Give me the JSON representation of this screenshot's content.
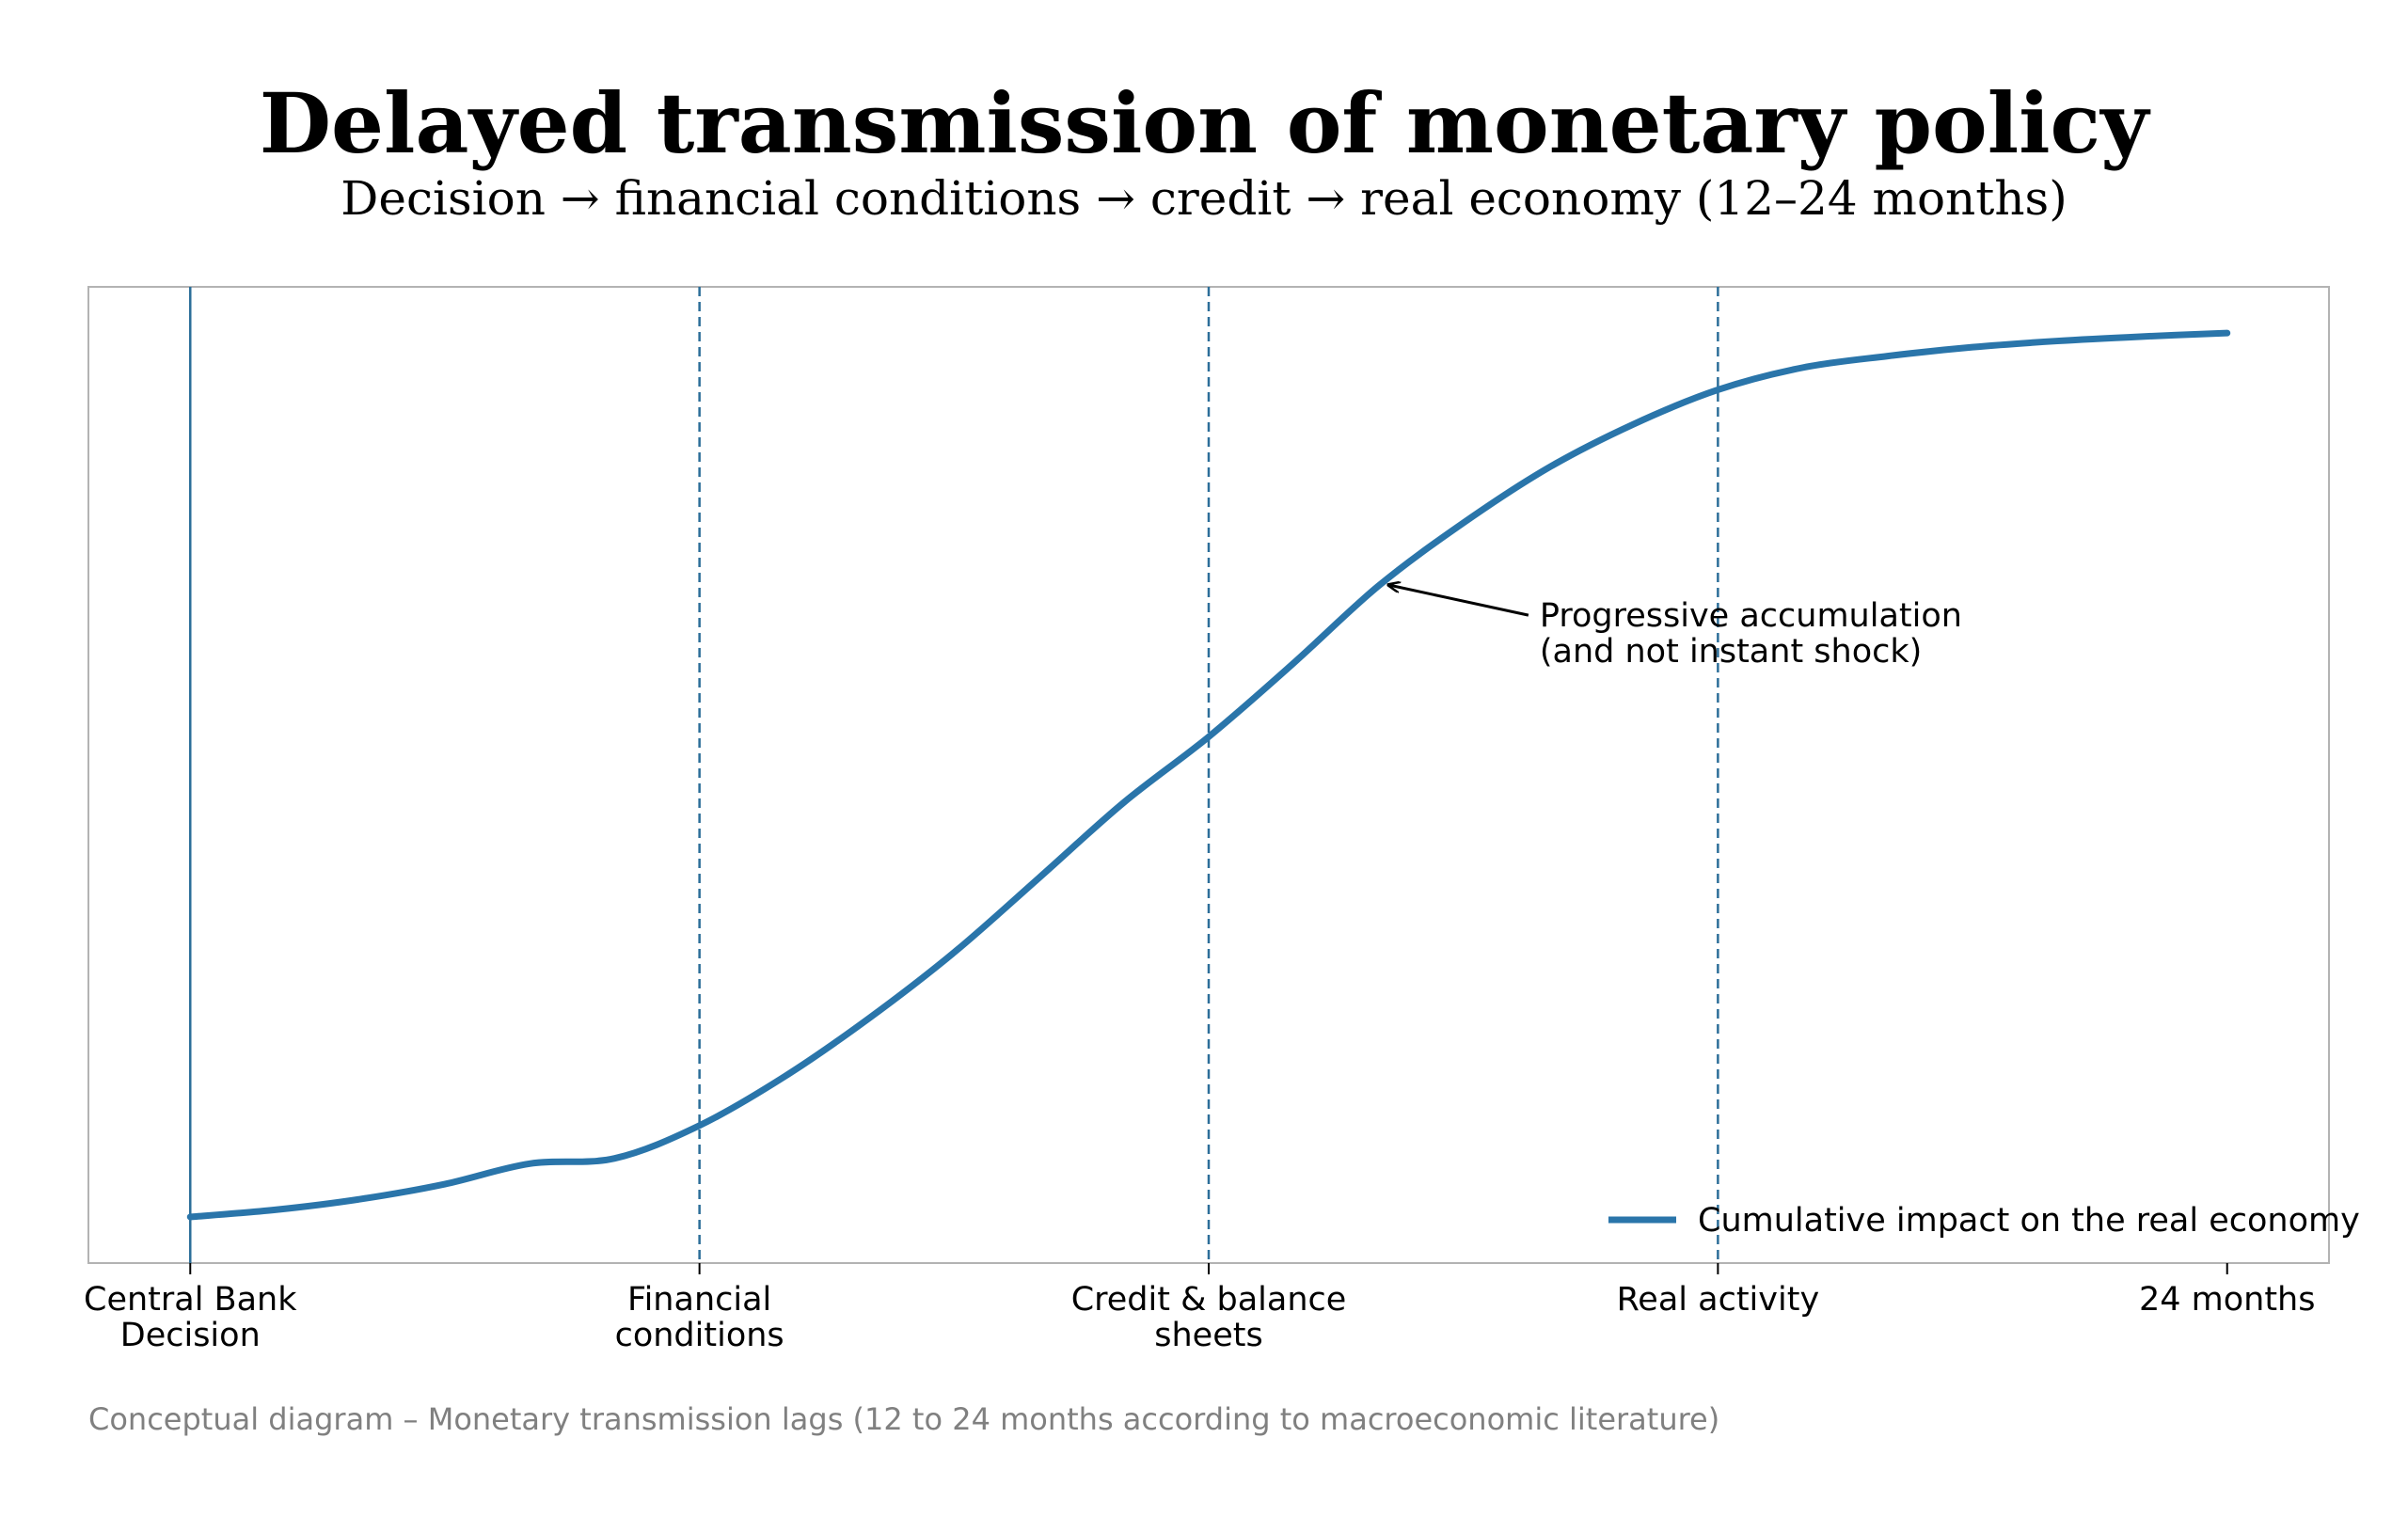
{
  "chart_data": {
    "type": "line",
    "title": "Delayed transmission of monetary policy",
    "subtitle": "Decision → financial conditions → credit → real economy (12–24 months)",
    "xlabel": "",
    "ylabel": "",
    "x_ticks": [
      {
        "x": 0,
        "lines": [
          "Central Bank",
          "Decision"
        ]
      },
      {
        "x": 6,
        "lines": [
          "Financial",
          "conditions"
        ]
      },
      {
        "x": 12,
        "lines": [
          "Credit & balance",
          "sheets"
        ]
      },
      {
        "x": 18,
        "lines": [
          "Real activity"
        ]
      },
      {
        "x": 24,
        "lines": [
          "24 months"
        ]
      }
    ],
    "xlim": [
      -1.2,
      25.2
    ],
    "ylim": [
      -0.05,
      1.05
    ],
    "yticks_visible": false,
    "grid": false,
    "vertical_markers": [
      {
        "x": 0,
        "style": "solid",
        "color": "#2c6e99"
      },
      {
        "x": 6,
        "style": "dashed",
        "color": "#2c6e99"
      },
      {
        "x": 12,
        "style": "dashed",
        "color": "#2c6e99"
      },
      {
        "x": 18,
        "style": "dashed",
        "color": "#2c6e99"
      }
    ],
    "series": [
      {
        "name": "Cumulative impact on the real economy",
        "color": "#2a75aa",
        "x": [
          0,
          1,
          2,
          3,
          4,
          5,
          6,
          7,
          8,
          9,
          10,
          11,
          12,
          13,
          14,
          15,
          16,
          17,
          18,
          19,
          20,
          21,
          22,
          23,
          24
        ],
        "y": [
          0.002,
          0.01,
          0.022,
          0.039,
          0.062,
          0.068,
          0.105,
          0.16,
          0.226,
          0.3,
          0.384,
          0.469,
          0.543,
          0.626,
          0.713,
          0.784,
          0.846,
          0.895,
          0.934,
          0.959,
          0.972,
          0.982,
          0.989,
          0.994,
          0.998
        ]
      }
    ],
    "annotation": {
      "lines": [
        "Progressive accumulation",
        "(and not instant shock)"
      ],
      "target": {
        "x": 14.1,
        "y": 0.713
      },
      "text_at": {
        "x": 15.9,
        "y": 0.68
      }
    },
    "legend": {
      "position": "lower-right"
    },
    "footnote": "Conceptual diagram – Monetary transmission lags (12 to 24 months according to macroeconomic literature)"
  }
}
